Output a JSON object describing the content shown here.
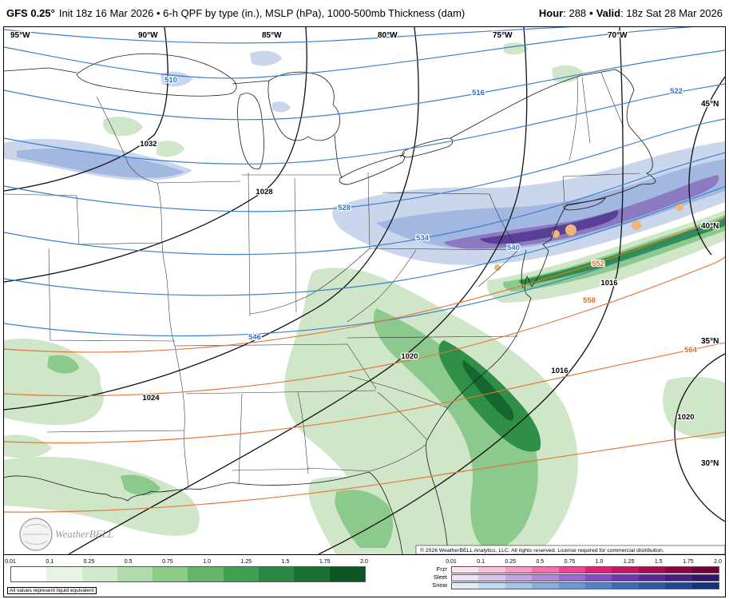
{
  "header": {
    "model": "GFS 0.25°",
    "subtitle": "Init 18z 16 Mar 2026 • 6-h QPF by type (in.), MSLP (hPa), 1000-500mb Thickness (dam)",
    "hour_label": "Hour",
    "hour_value": ": 288",
    "separator": "•",
    "valid_label": "Valid",
    "valid_value": ": 18z Sat 28 Mar 2026"
  },
  "map": {
    "lon_labels": [
      "95°W",
      "90°W",
      "85°W",
      "80°W",
      "75°W",
      "70°W"
    ],
    "lat_labels": [
      "45°N",
      "40°N",
      "35°N",
      "30°N"
    ],
    "mslp_labels": [
      "1032",
      "1028",
      "1024",
      "1020",
      "1016",
      "1016",
      "1020"
    ],
    "thickness_blue_labels": [
      "510",
      "516",
      "522",
      "528",
      "534",
      "540",
      "546"
    ],
    "thickness_orange_labels": [
      "552",
      "558",
      "564"
    ],
    "logo_text": "WeatherBELL",
    "copyright": "© 2026 WeatherBELL Analytics, LLC. All rights reserved. License required for commercial distribution.",
    "palette": {
      "rain_light": "#cfe6c8",
      "rain_mid": "#8cc98c",
      "rain_dark": "#2f8f48",
      "rain_darkest": "#14672f",
      "snow_light": "#c9d6ec",
      "snow_mid": "#a2b8e0",
      "snow_purple": "#8b79c1",
      "snow_dark_purple": "#5a3f96",
      "sleet": "#f2b578",
      "thickness_blue": "#3a7fd0",
      "thickness_warm": "#e8763a",
      "mslp_black": "#111111"
    }
  },
  "legend": {
    "note": "All values represent liquid equivalent",
    "ticks": [
      "0.01",
      "0.1",
      "0.25",
      "0.5",
      "0.75",
      "1.0",
      "1.25",
      "1.5",
      "1.75",
      "2.0"
    ],
    "types": [
      "Frzr",
      "Sleet",
      "Snow"
    ],
    "rain_colors": [
      "#ffffff",
      "#e9f5e4",
      "#d0e9cb",
      "#b0dbaa",
      "#8cca88",
      "#63b669",
      "#3fa052",
      "#2a8842",
      "#1a6f33",
      "#0d5626"
    ],
    "frzr_colors": [
      "#fce4ef",
      "#f9c2da",
      "#f59cc3",
      "#f173ab",
      "#ea4893",
      "#de217b",
      "#c51566",
      "#a80d53",
      "#8a0642",
      "#6b0333"
    ],
    "sleet_colors": [
      "#ece4f7",
      "#d8c6ef",
      "#c2a7e4",
      "#ac89d9",
      "#956ccd",
      "#7e50c0",
      "#6939ae",
      "#562b97",
      "#442180",
      "#331767"
    ],
    "snow_colors": [
      "#e2ebf8",
      "#c5d8f1",
      "#a6c3e8",
      "#89aede",
      "#6c98d3",
      "#5182c6",
      "#3c6cb8",
      "#2c58a6",
      "#1f4492",
      "#14317c"
    ]
  }
}
